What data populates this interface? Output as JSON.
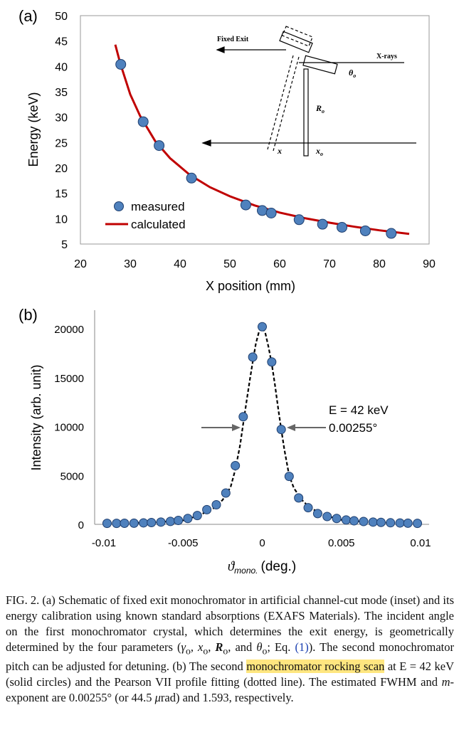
{
  "chart_data": [
    {
      "type": "scatter",
      "panel_label": "(a)",
      "xlabel": "X position (mm)",
      "ylabel": "Energy (keV)",
      "xlim": [
        20,
        90
      ],
      "ylim": [
        5,
        50
      ],
      "xticks": [
        "20",
        "30",
        "40",
        "50",
        "60",
        "70",
        "80",
        "90"
      ],
      "yticks": [
        "5",
        "10",
        "15",
        "20",
        "25",
        "30",
        "35",
        "40",
        "45",
        "50"
      ],
      "grid": false,
      "legend_position": "bottom-left",
      "series": [
        {
          "name": "measured",
          "type": "scatter",
          "color": "#4f81bd",
          "x": [
            28.1,
            32.6,
            35.8,
            42.3,
            53.2,
            56.5,
            58.3,
            63.9,
            68.6,
            72.5,
            77.2,
            82.4
          ],
          "y": [
            40.4,
            29.1,
            24.4,
            18.0,
            12.7,
            11.6,
            11.1,
            9.8,
            8.9,
            8.3,
            7.6,
            7.1
          ]
        },
        {
          "name": "calculated",
          "type": "line",
          "color": "#c00000",
          "x": [
            27.0,
            28.0,
            30.0,
            32.0,
            35.0,
            38.0,
            42.0,
            46.0,
            50.0,
            55.0,
            60.0,
            65.0,
            70.0,
            75.0,
            80.0,
            86.0
          ],
          "y": [
            44.3,
            40.6,
            34.5,
            30.2,
            25.3,
            21.9,
            18.6,
            16.2,
            14.4,
            12.6,
            11.2,
            10.1,
            9.2,
            8.4,
            7.7,
            7.0
          ]
        }
      ],
      "inset": {
        "labels": {
          "fixed_exit": "Fixed Exit",
          "xrays": "X-rays",
          "theta": "θ",
          "theta_sub": "o",
          "R": "R",
          "R_sub": "o",
          "x": "x",
          "x0": "x",
          "x0_sub": "o"
        }
      }
    },
    {
      "type": "line",
      "panel_label": "(b)",
      "xlabel": "ϑ",
      "xlabel_sub": "mono.",
      "xlabel_unit": "(deg.)",
      "ylabel": "Intensity (arb. unit)",
      "xlim": [
        -0.01,
        0.01
      ],
      "ylim": [
        0,
        20000
      ],
      "xticks": [
        "-0.01",
        "-0.005",
        "0",
        "0.005",
        "0.01"
      ],
      "yticks": [
        "0",
        "5000",
        "10000",
        "15000",
        "20000"
      ],
      "grid": false,
      "annotation": [
        "E = 42 keV",
        "0.00255°"
      ],
      "series": [
        {
          "name": "",
          "type": "scatter",
          "color": "#4f81bd",
          "x": [
            -0.0098,
            -0.0092,
            -0.0087,
            -0.0081,
            -0.0075,
            -0.007,
            -0.0064,
            -0.0058,
            -0.0053,
            -0.0047,
            -0.0041,
            -0.0035,
            -0.0029,
            -0.0023,
            -0.0017,
            -0.0012,
            -0.0006,
            0.0,
            0.0006,
            0.0012,
            0.0017,
            0.0023,
            0.0029,
            0.0035,
            0.0041,
            0.0047,
            0.0053,
            0.0058,
            0.0064,
            0.007,
            0.0075,
            0.0081,
            0.0087,
            0.0092,
            0.0098
          ],
          "y": [
            100,
            100,
            110,
            120,
            150,
            180,
            230,
            300,
            400,
            600,
            900,
            1500,
            2000,
            3200,
            6000,
            11000,
            17100,
            20200,
            16600,
            9700,
            4900,
            2700,
            1700,
            1100,
            800,
            600,
            450,
            360,
            290,
            230,
            200,
            160,
            140,
            120,
            100
          ]
        },
        {
          "name": "",
          "type": "line",
          "style": "dashed",
          "color": "#000000",
          "x": [
            -0.0098,
            -0.007,
            -0.005,
            -0.004,
            -0.003,
            -0.0025,
            -0.002,
            -0.0017,
            -0.0014,
            -0.0012,
            -0.001,
            -0.0008,
            -0.0006,
            -0.0004,
            -0.0002,
            0.0,
            0.0002,
            0.0004,
            0.0006,
            0.0008,
            0.001,
            0.0012,
            0.0014,
            0.0017,
            0.002,
            0.0025,
            0.003,
            0.004,
            0.005,
            0.007,
            0.0098
          ],
          "y": [
            100,
            180,
            400,
            900,
            1700,
            2500,
            3800,
            5600,
            8100,
            10300,
            12500,
            14600,
            16600,
            18500,
            19700,
            20200,
            19500,
            18100,
            16400,
            14300,
            11900,
            9700,
            7600,
            5000,
            3700,
            2500,
            1700,
            900,
            450,
            200,
            100
          ]
        }
      ]
    }
  ],
  "caption": {
    "fig": "FIG. 2.",
    "part1": " (a) Schematic of fixed exit monochromator in artificial channel-cut mode (inset) and its energy calibration using known standard absorptions (EXAFS Materials). The incident angle on the first monochromator crystal, which determines the exit energy, is geometrically determined by the four parameters (",
    "params": "γ",
    "part2": "o, x",
    "part3": "o, R",
    "part4": "o, and θ",
    "part5": "o; Eq. ",
    "eq_link": "(1)",
    "part6": "). The second monochromator pitch can be adjusted for detuning. (b) The second ",
    "highlight": "monochromator rocking scan",
    "part7": " at E = 42 keV (solid circles) and the Pearson VII profile fitting (dotted line). The estimated FWHM and ",
    "m": "m",
    "part8": "-exponent are 0.00255° (or 44.5 ",
    "mu": "μ",
    "part9": "rad) and 1.593, respectively."
  }
}
